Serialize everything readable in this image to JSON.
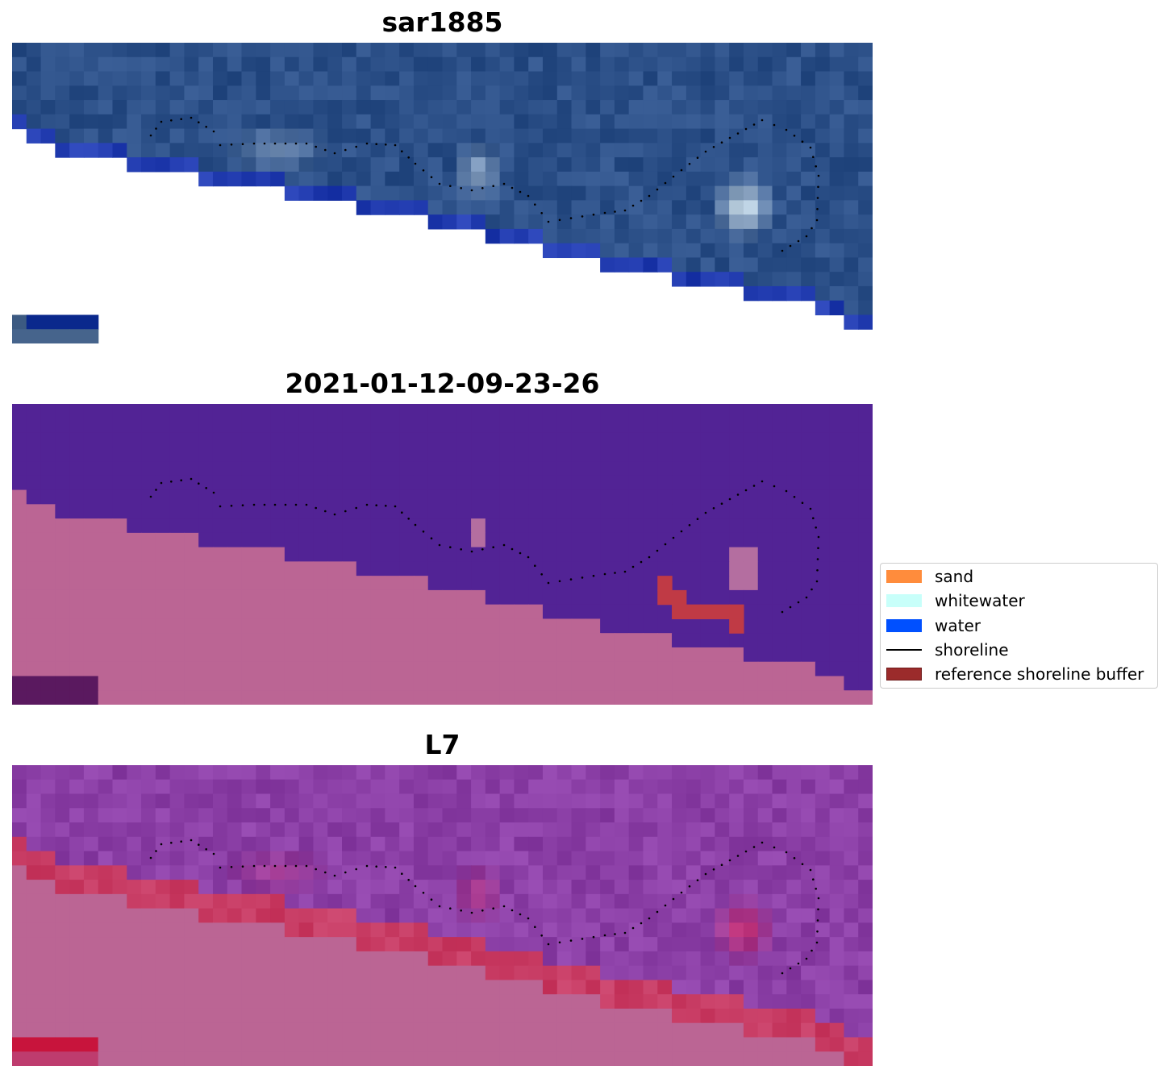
{
  "panels": [
    {
      "title": "sar1885"
    },
    {
      "title": "2021-01-12-09-23-26"
    },
    {
      "title": "L7"
    }
  ],
  "legend": {
    "items": [
      {
        "label": "sand",
        "kind": "patch",
        "color": "#ff8c3c",
        "edge": "#ff8c3c"
      },
      {
        "label": "whitewater",
        "kind": "patch",
        "color": "#c8fffa",
        "edge": "#c8fffa"
      },
      {
        "label": "water",
        "kind": "patch",
        "color": "#0050ff",
        "edge": "#0050ff"
      },
      {
        "label": "shoreline",
        "kind": "line",
        "color": "#000000",
        "edge": "#000000"
      },
      {
        "label": "reference shoreline buffer",
        "kind": "patch",
        "color": "#9b2b2b",
        "edge": "#6e1a1a"
      }
    ]
  },
  "colors": {
    "land_pink": "#bb6594",
    "classified_water": "#522395",
    "l7_magenta": "#8b3fa6",
    "sar_blue": "#2c4f88"
  }
}
